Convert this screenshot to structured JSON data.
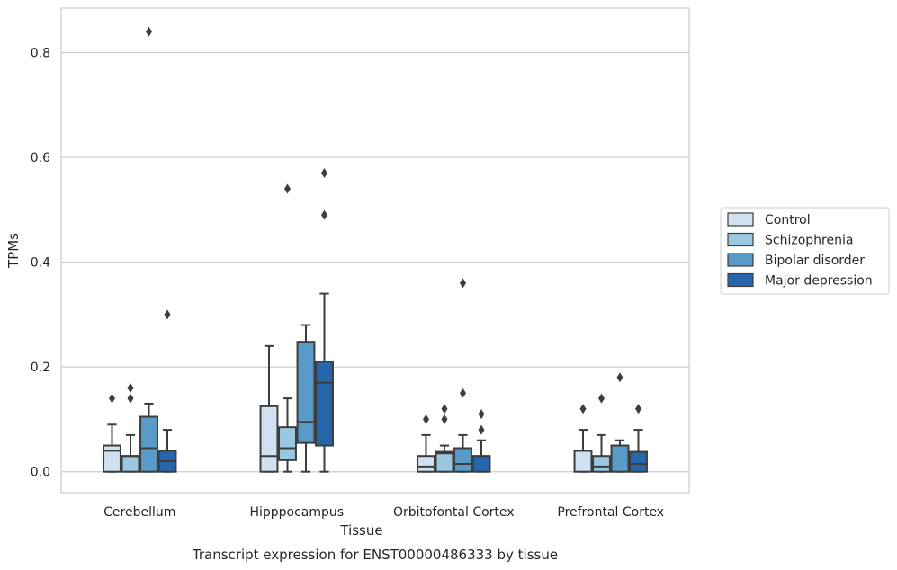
{
  "chart_data": {
    "type": "box",
    "title": "",
    "caption": "Transcript expression for ENST00000486333 by tissue",
    "xlabel": "Tissue",
    "ylabel": "TPMs",
    "ylim": [
      -0.04,
      0.885
    ],
    "yticks": [
      0.0,
      0.2,
      0.4,
      0.6,
      0.8
    ],
    "ytick_labels": [
      "0.0",
      "0.2",
      "0.4",
      "0.6",
      "0.8"
    ],
    "grid": "horizontal",
    "legend_position": "right",
    "categories": [
      "Cerebellum",
      "Hipppocampus",
      "Orbitofontal Cortex",
      "Prefrontal Cortex"
    ],
    "series": [
      {
        "name": "Control",
        "color": "#d0e1f2",
        "boxes": [
          {
            "whisker_low": 0.0,
            "q1": 0.0,
            "median": 0.04,
            "q3": 0.05,
            "whisker_high": 0.09,
            "outliers": [
              0.14
            ]
          },
          {
            "whisker_low": 0.0,
            "q1": 0.0,
            "median": 0.03,
            "q3": 0.125,
            "whisker_high": 0.24,
            "outliers": []
          },
          {
            "whisker_low": 0.0,
            "q1": 0.0,
            "median": 0.01,
            "q3": 0.03,
            "whisker_high": 0.07,
            "outliers": [
              0.1
            ]
          },
          {
            "whisker_low": 0.0,
            "q1": 0.0,
            "median": 0.04,
            "q3": 0.04,
            "whisker_high": 0.08,
            "outliers": [
              0.12
            ]
          }
        ]
      },
      {
        "name": "Schizophrenia",
        "color": "#9ac8e0",
        "boxes": [
          {
            "whisker_low": 0.0,
            "q1": 0.0,
            "median": 0.03,
            "q3": 0.03,
            "whisker_high": 0.07,
            "outliers": [
              0.14,
              0.16
            ]
          },
          {
            "whisker_low": 0.0,
            "q1": 0.022,
            "median": 0.045,
            "q3": 0.085,
            "whisker_high": 0.14,
            "outliers": [
              0.54
            ]
          },
          {
            "whisker_low": 0.0,
            "q1": 0.0,
            "median": 0.035,
            "q3": 0.038,
            "whisker_high": 0.05,
            "outliers": [
              0.1,
              0.12
            ]
          },
          {
            "whisker_low": 0.0,
            "q1": 0.0,
            "median": 0.01,
            "q3": 0.03,
            "whisker_high": 0.07,
            "outliers": [
              0.14
            ]
          }
        ]
      },
      {
        "name": "Bipolar disorder",
        "color": "#5a9ac8",
        "boxes": [
          {
            "whisker_low": 0.0,
            "q1": 0.0,
            "median": 0.045,
            "q3": 0.105,
            "whisker_high": 0.13,
            "outliers": [
              0.84
            ]
          },
          {
            "whisker_low": 0.0,
            "q1": 0.055,
            "median": 0.095,
            "q3": 0.248,
            "whisker_high": 0.28,
            "outliers": []
          },
          {
            "whisker_low": 0.0,
            "q1": 0.0,
            "median": 0.015,
            "q3": 0.045,
            "whisker_high": 0.07,
            "outliers": [
              0.15,
              0.36
            ]
          },
          {
            "whisker_low": 0.0,
            "q1": 0.0,
            "median": 0.05,
            "q3": 0.05,
            "whisker_high": 0.06,
            "outliers": [
              0.18
            ]
          }
        ]
      },
      {
        "name": "Major depression",
        "color": "#2666ab",
        "boxes": [
          {
            "whisker_low": 0.0,
            "q1": 0.0,
            "median": 0.02,
            "q3": 0.04,
            "whisker_high": 0.08,
            "outliers": [
              0.3
            ]
          },
          {
            "whisker_low": 0.0,
            "q1": 0.05,
            "median": 0.17,
            "q3": 0.21,
            "whisker_high": 0.34,
            "outliers": [
              0.49,
              0.57
            ]
          },
          {
            "whisker_low": 0.0,
            "q1": 0.0,
            "median": 0.03,
            "q3": 0.03,
            "whisker_high": 0.06,
            "outliers": [
              0.08,
              0.11
            ]
          },
          {
            "whisker_low": 0.0,
            "q1": 0.0,
            "median": 0.015,
            "q3": 0.038,
            "whisker_high": 0.08,
            "outliers": [
              0.12
            ]
          }
        ]
      }
    ]
  }
}
